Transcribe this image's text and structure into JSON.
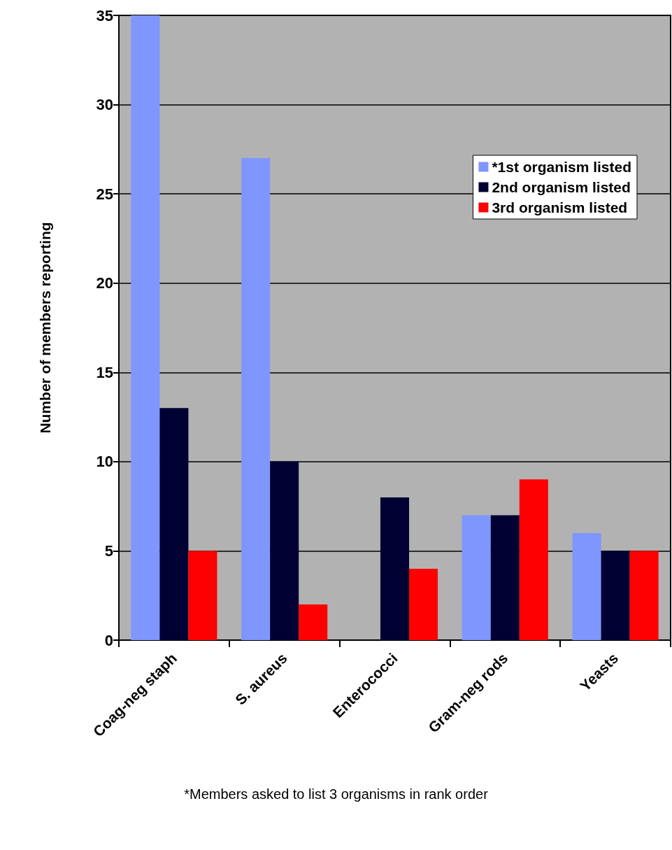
{
  "chart_data": {
    "type": "bar",
    "ylabel": "Number of members reporting",
    "categories": [
      "Coag-neg staph",
      "S. aureus",
      "Enterococci",
      "Gram-neg rods",
      "Yeasts"
    ],
    "series": [
      {
        "name": "*1st organism listed",
        "color": "#7f96ff",
        "values": [
          35,
          27,
          0,
          7,
          6
        ]
      },
      {
        "name": "2nd organism listed",
        "color": "#000033",
        "values": [
          13,
          10,
          8,
          7,
          5
        ]
      },
      {
        "name": "3rd organism listed",
        "color": "#ff0000",
        "values": [
          5,
          2,
          4,
          9,
          5
        ]
      }
    ],
    "ylim": [
      0,
      35
    ],
    "yticks": [
      0,
      5,
      10,
      15,
      20,
      25,
      30,
      35
    ],
    "grid": "y",
    "legend": "top right",
    "annotations": [
      "*Members asked to list 3 organisms in rank order"
    ]
  }
}
